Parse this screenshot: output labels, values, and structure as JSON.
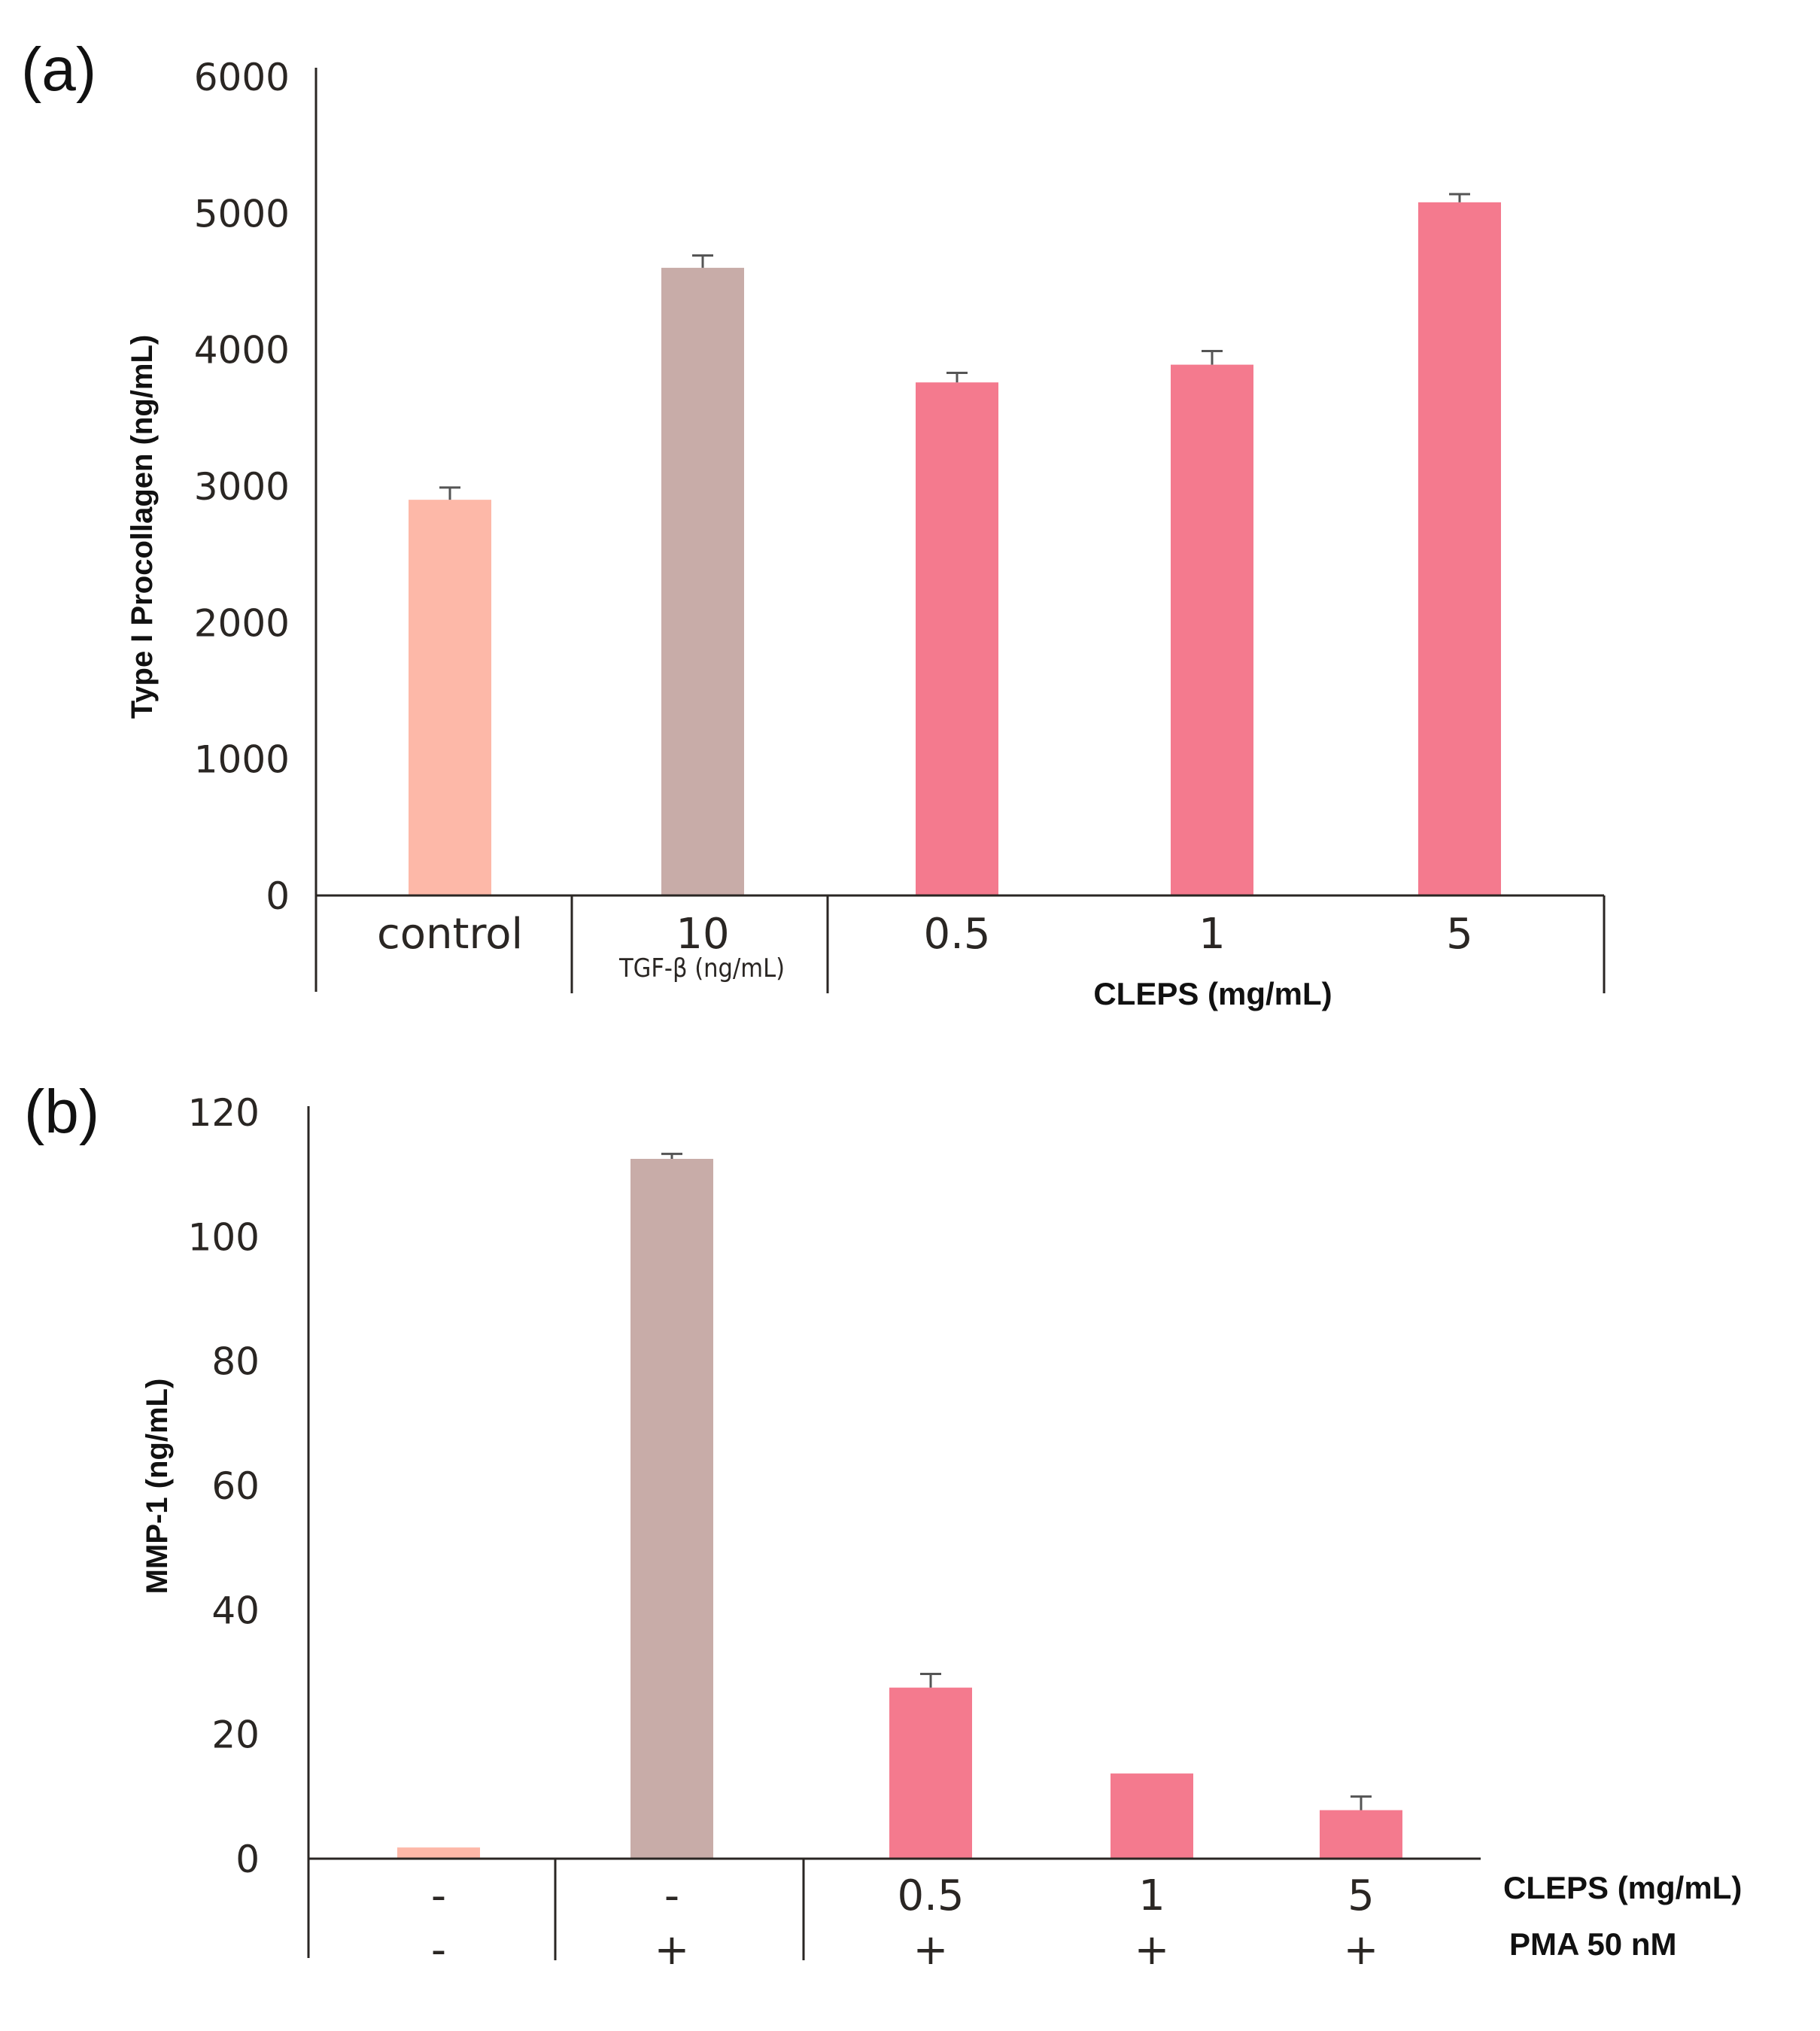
{
  "chart_data": [
    {
      "panel_label": "(a)",
      "type": "bar",
      "ylabel": "Type I Procollagen (ng/mL)",
      "ylim": [
        0,
        6000
      ],
      "yticks": [
        0,
        1000,
        2000,
        3000,
        4000,
        5000,
        6000
      ],
      "categories": [
        "control",
        "10",
        "0.5",
        "1",
        "5"
      ],
      "category_sublabel": {
        "index": 1,
        "text": "TGF-β (ng/mL)"
      },
      "group_label": "CLEPS (mg/mL)",
      "values": [
        2900,
        4600,
        3760,
        3890,
        5080
      ],
      "errors": [
        90,
        90,
        70,
        100,
        60
      ],
      "colors": [
        "#fdb8a8",
        "#c8aca8",
        "#f47a8e",
        "#f47a8e",
        "#f47a8e"
      ]
    },
    {
      "panel_label": "(b)",
      "type": "bar",
      "ylabel": "MMP-1 (ng/mL)",
      "ylim": [
        0,
        120
      ],
      "yticks": [
        0,
        20,
        40,
        60,
        80,
        100,
        120
      ],
      "row1_label": "CLEPS (mg/mL)",
      "row1": [
        "-",
        "-",
        "0.5",
        "1",
        "5"
      ],
      "row2_label": "PMA 50 nM",
      "row2": [
        "-",
        "+",
        "+",
        "+",
        "+"
      ],
      "values": [
        1.8,
        112.5,
        27.5,
        13.7,
        7.8
      ],
      "errors": [
        0,
        0.8,
        2.2,
        0,
        2.2
      ],
      "colors": [
        "#fdb8a8",
        "#c8aca8",
        "#f47a8e",
        "#f47a8e",
        "#f47a8e"
      ]
    }
  ]
}
